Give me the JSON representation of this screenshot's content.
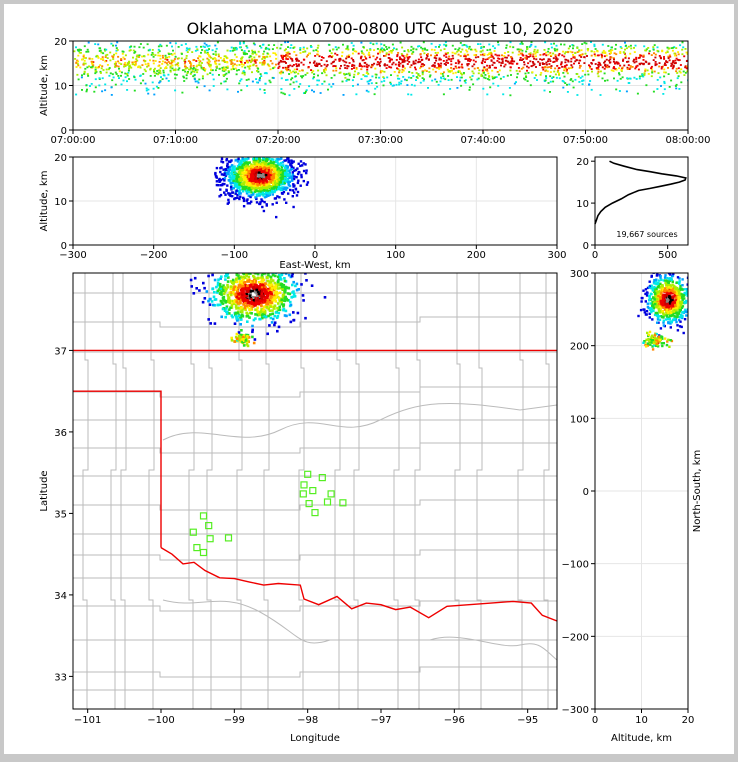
{
  "title": "Oklahoma LMA 0700-0800 UTC August 10, 2020",
  "colors": {
    "background": "#ffffff",
    "border": "#c8c8c8",
    "state_line": "#ee0000",
    "county_line": "#bbbbbb",
    "station": "#55ee22",
    "grid": "#e6e6e6"
  },
  "chart_data": [
    {
      "id": "time-altitude",
      "type": "heatmap",
      "xlabel": "",
      "ylabel": "Altitude, km",
      "x_ticks": [
        "07:00:00",
        "07:10:00",
        "07:20:00",
        "07:30:00",
        "07:40:00",
        "07:50:00",
        "08:00:00"
      ],
      "xlim": [
        "07:00:00",
        "08:00:00"
      ],
      "ylim": [
        0,
        20
      ],
      "y_ticks": [
        0,
        10,
        20
      ],
      "grid": true,
      "density": "sources between about 6 and 20 km for the whole hour, densest near 13-18 km; dense red core bands mostly after 07:20"
    },
    {
      "id": "east-west-altitude",
      "type": "heatmap",
      "xlabel": "East-West, km",
      "ylabel": "Altitude, km",
      "xlim": [
        -300,
        300
      ],
      "x_ticks": [
        -300,
        -200,
        -100,
        0,
        100,
        200,
        300
      ],
      "ylim": [
        0,
        20
      ],
      "y_ticks": [
        0,
        10,
        20
      ],
      "grid": true,
      "clusters": [
        {
          "x_range": [
            -125,
            -10
          ],
          "z_range": [
            6,
            20
          ],
          "peak": {
            "x": -70,
            "z": 16
          }
        }
      ]
    },
    {
      "id": "altitude-histogram",
      "type": "line",
      "xlabel": "",
      "ylabel": "",
      "xlim": [
        0,
        640
      ],
      "x_ticks": [
        0,
        500
      ],
      "ylim": [
        0,
        21
      ],
      "y_ticks": [
        0,
        10,
        20
      ],
      "annotation": "19,667 sources",
      "series": [
        {
          "points": [
            [
              0,
              5
            ],
            [
              10,
              6
            ],
            [
              20,
              7
            ],
            [
              40,
              8
            ],
            [
              70,
              9
            ],
            [
              120,
              10
            ],
            [
              180,
              11
            ],
            [
              230,
              12
            ],
            [
              300,
              13
            ],
            [
              380,
              13.5
            ],
            [
              450,
              14
            ],
            [
              520,
              14.5
            ],
            [
              580,
              15
            ],
            [
              620,
              15.5
            ],
            [
              625,
              16
            ],
            [
              560,
              16.5
            ],
            [
              460,
              17
            ],
            [
              380,
              17.5
            ],
            [
              290,
              18
            ],
            [
              200,
              18.8
            ],
            [
              130,
              19.5
            ],
            [
              100,
              20
            ]
          ]
        }
      ]
    },
    {
      "id": "plan-view",
      "type": "heatmap",
      "xlabel": "Longitude",
      "ylabel": "Latitude",
      "xlim": [
        -101.2,
        -94.6
      ],
      "x_ticks": [
        -101,
        -100,
        -99,
        -98,
        -97,
        -96,
        -95
      ],
      "ylim": [
        32.6,
        37.95
      ],
      "y_ticks": [
        33,
        34,
        35,
        36,
        37
      ],
      "clusters": [
        {
          "lon": -98.75,
          "lat": 37.7,
          "size": "large"
        },
        {
          "lon": -98.9,
          "lat": 37.15,
          "size": "small"
        }
      ],
      "stations": [
        {
          "lon": -98.0,
          "lat": 35.48
        },
        {
          "lon": -97.8,
          "lat": 35.44
        },
        {
          "lon": -98.05,
          "lat": 35.35
        },
        {
          "lon": -97.93,
          "lat": 35.28
        },
        {
          "lon": -98.06,
          "lat": 35.24
        },
        {
          "lon": -97.68,
          "lat": 35.24
        },
        {
          "lon": -97.98,
          "lat": 35.12
        },
        {
          "lon": -97.73,
          "lat": 35.14
        },
        {
          "lon": -97.52,
          "lat": 35.13
        },
        {
          "lon": -97.9,
          "lat": 35.01
        },
        {
          "lon": -99.42,
          "lat": 34.97
        },
        {
          "lon": -99.35,
          "lat": 34.85
        },
        {
          "lon": -99.56,
          "lat": 34.77
        },
        {
          "lon": -99.33,
          "lat": 34.69
        },
        {
          "lon": -99.08,
          "lat": 34.7
        },
        {
          "lon": -99.51,
          "lat": 34.58
        },
        {
          "lon": -99.42,
          "lat": 34.52
        }
      ]
    },
    {
      "id": "altitude-north-south",
      "type": "heatmap",
      "xlabel": "Altitude, km",
      "ylabel": "North-South, km",
      "xlim": [
        0,
        20
      ],
      "x_ticks": [
        0,
        10,
        20
      ],
      "ylim": [
        -300,
        300
      ],
      "y_ticks": [
        -300,
        -200,
        -100,
        0,
        100,
        200,
        300
      ],
      "grid": true,
      "clusters": [
        {
          "z": 15.5,
          "ns": 265,
          "size": "large"
        },
        {
          "z": 13,
          "ns": 208,
          "size": "small"
        }
      ]
    }
  ]
}
